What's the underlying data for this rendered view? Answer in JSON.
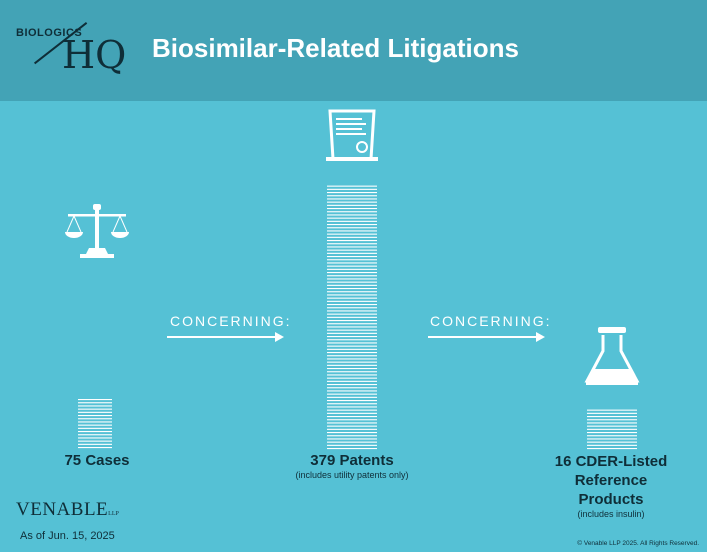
{
  "header": {
    "logo_small": "BIOLOGICS",
    "logo_big": "HQ",
    "title": "Biosimilar-Related Litigations"
  },
  "stats": [
    {
      "value": 75,
      "label": "75 Cases",
      "note": "",
      "icon": "scales-of-justice-icon"
    },
    {
      "value": 379,
      "label": "379 Patents",
      "note": "(includes utility patents only)",
      "icon": "patent-document-icon"
    },
    {
      "value": 16,
      "label_lines": [
        "16 CDER-Listed",
        "Reference",
        "Products"
      ],
      "note": "(includes insulin)",
      "icon": "flask-icon"
    }
  ],
  "connectors": [
    {
      "label": "CONCERNING:"
    },
    {
      "label": "CONCERNING:"
    }
  ],
  "footer": {
    "brand": "VENABLE",
    "brand_suffix": "LLP",
    "as_of": "As of Jun. 15, 2025",
    "copyright": "© Venable LLP 2025. All Rights Reserved."
  },
  "colors": {
    "background": "#55c1d5",
    "header": "#43a3b6",
    "text_dark": "#0f2e38",
    "lines": "#ffffff"
  }
}
